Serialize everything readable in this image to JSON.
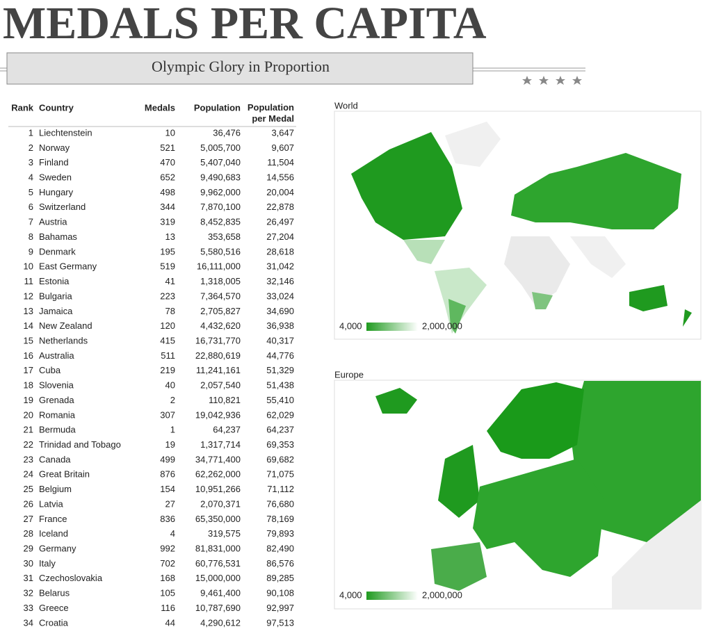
{
  "header": {
    "title": "MEDALS PER CAPITA",
    "subtitle": "Olympic Glory in Proportion"
  },
  "table": {
    "columns": [
      "Rank",
      "Country",
      "Medals",
      "Population",
      "Population per Medal"
    ],
    "rows": [
      [
        1,
        "Liechtenstein",
        10,
        "36,476",
        "3,647"
      ],
      [
        2,
        "Norway",
        521,
        "5,005,700",
        "9,607"
      ],
      [
        3,
        "Finland",
        470,
        "5,407,040",
        "11,504"
      ],
      [
        4,
        "Sweden",
        652,
        "9,490,683",
        "14,556"
      ],
      [
        5,
        "Hungary",
        498,
        "9,962,000",
        "20,004"
      ],
      [
        6,
        "Switzerland",
        344,
        "7,870,100",
        "22,878"
      ],
      [
        7,
        "Austria",
        319,
        "8,452,835",
        "26,497"
      ],
      [
        8,
        "Bahamas",
        13,
        "353,658",
        "27,204"
      ],
      [
        9,
        "Denmark",
        195,
        "5,580,516",
        "28,618"
      ],
      [
        10,
        "East Germany",
        519,
        "16,111,000",
        "31,042"
      ],
      [
        11,
        "Estonia",
        41,
        "1,318,005",
        "32,146"
      ],
      [
        12,
        "Bulgaria",
        223,
        "7,364,570",
        "33,024"
      ],
      [
        13,
        "Jamaica",
        78,
        "2,705,827",
        "34,690"
      ],
      [
        14,
        "New Zealand",
        120,
        "4,432,620",
        "36,938"
      ],
      [
        15,
        "Netherlands",
        415,
        "16,731,770",
        "40,317"
      ],
      [
        16,
        "Australia",
        511,
        "22,880,619",
        "44,776"
      ],
      [
        17,
        "Cuba",
        219,
        "11,241,161",
        "51,329"
      ],
      [
        18,
        "Slovenia",
        40,
        "2,057,540",
        "51,438"
      ],
      [
        19,
        "Grenada",
        2,
        "110,821",
        "55,410"
      ],
      [
        20,
        "Romania",
        307,
        "19,042,936",
        "62,029"
      ],
      [
        21,
        "Bermuda",
        1,
        "64,237",
        "64,237"
      ],
      [
        22,
        "Trinidad and Tobago",
        19,
        "1,317,714",
        "69,353"
      ],
      [
        23,
        "Canada",
        499,
        "34,771,400",
        "69,682"
      ],
      [
        24,
        "Great Britain",
        876,
        "62,262,000",
        "71,075"
      ],
      [
        25,
        "Belgium",
        154,
        "10,951,266",
        "71,112"
      ],
      [
        26,
        "Latvia",
        27,
        "2,070,371",
        "76,680"
      ],
      [
        27,
        "France",
        836,
        "65,350,000",
        "78,169"
      ],
      [
        28,
        "Iceland",
        4,
        "319,575",
        "79,893"
      ],
      [
        29,
        "Germany",
        992,
        "81,831,000",
        "82,490"
      ],
      [
        30,
        "Italy",
        702,
        "60,776,531",
        "86,576"
      ],
      [
        31,
        "Czechoslovakia",
        168,
        "15,000,000",
        "89,285"
      ],
      [
        32,
        "Belarus",
        105,
        "9,461,400",
        "90,108"
      ],
      [
        33,
        "Greece",
        116,
        "10,787,690",
        "92,997"
      ],
      [
        34,
        "Croatia",
        44,
        "4,290,612",
        "97,513"
      ]
    ]
  },
  "maps": [
    {
      "title": "World",
      "legend": [
        "4,000",
        "2,000,000"
      ]
    },
    {
      "title": "Europe",
      "legend": [
        "4,000",
        "2,000,000"
      ]
    }
  ]
}
